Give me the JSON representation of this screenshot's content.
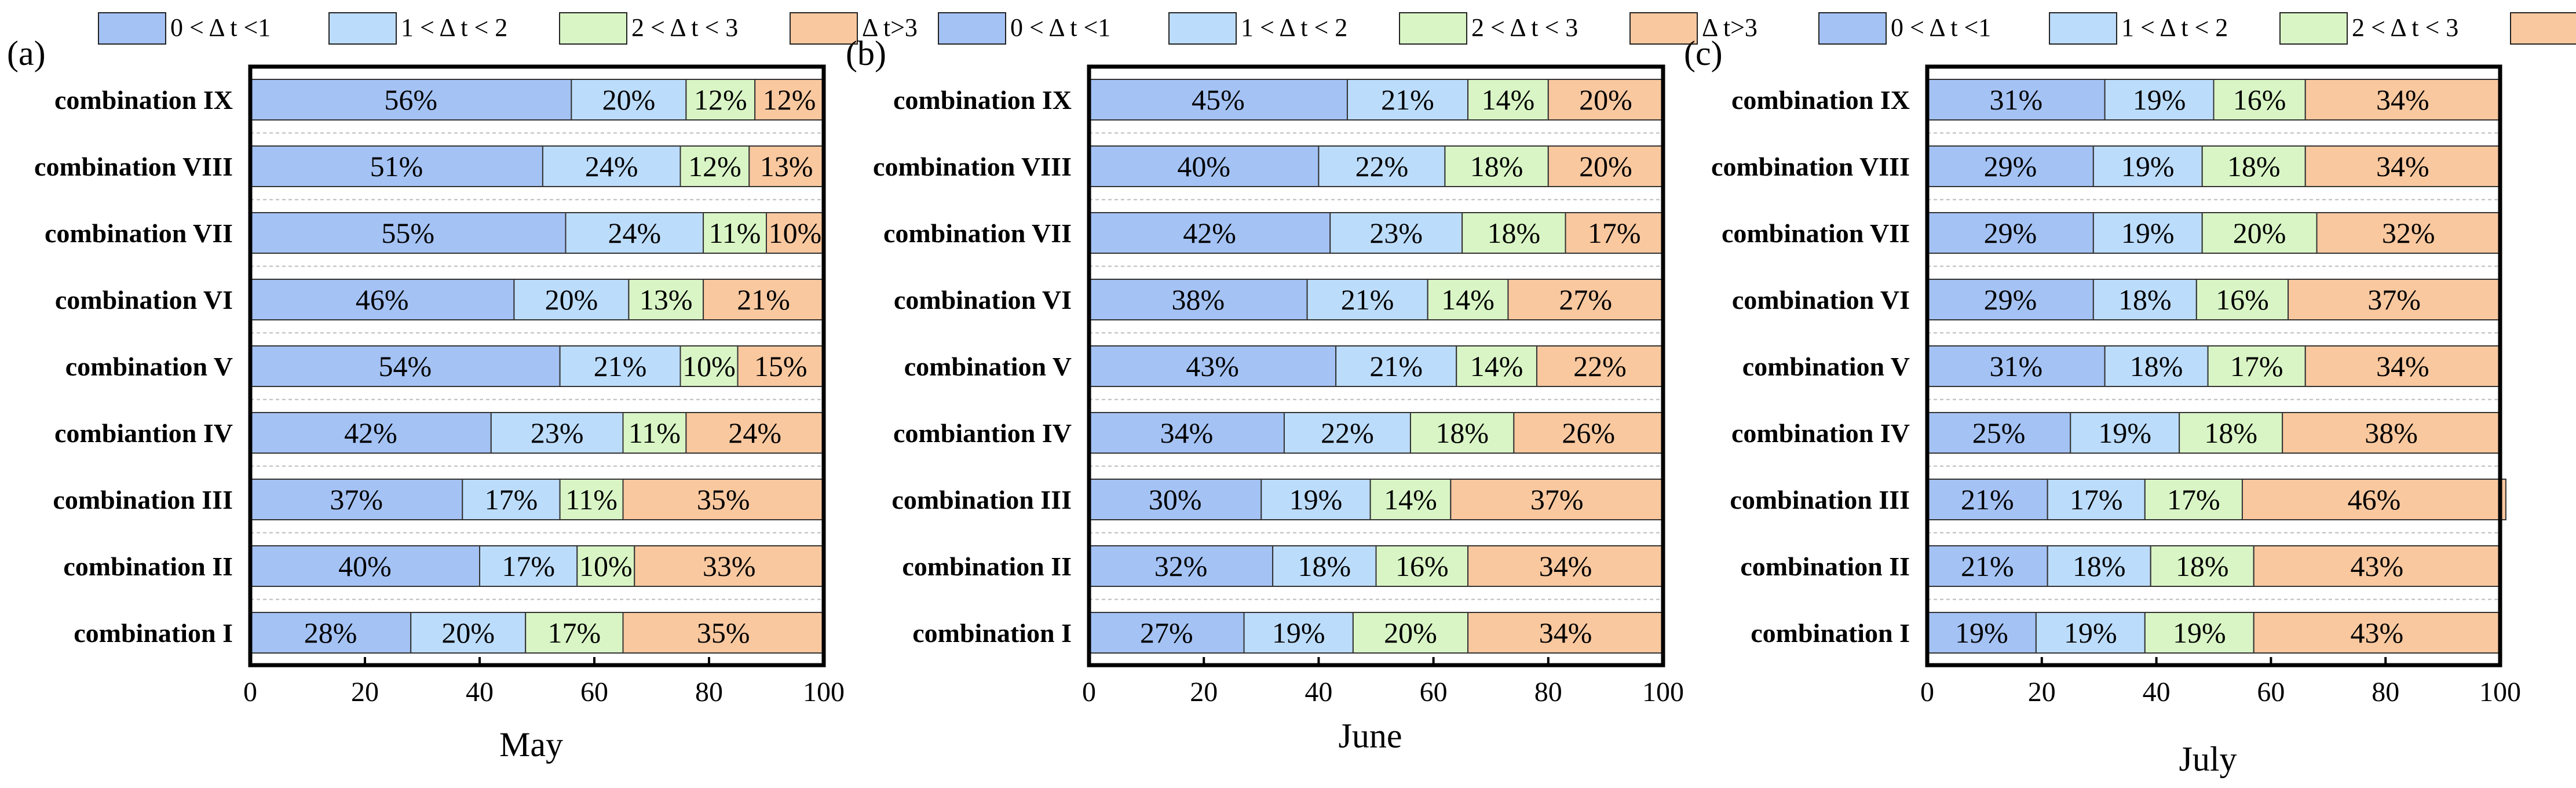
{
  "legend": [
    {
      "label": "0 < Δ t <1",
      "color": "#a4c2f4"
    },
    {
      "label": "1 < Δ t < 2",
      "color": "#bcdcfc"
    },
    {
      "label": "2 < Δ t < 3",
      "color": "#d9f5c5"
    },
    {
      "label": "Δ t>3",
      "color": "#f9c89f"
    }
  ],
  "chart_data": [
    {
      "type": "bar",
      "orientation": "horizontal",
      "stacked": true,
      "panel": "(a)",
      "xlabel": "May",
      "xlim": [
        0,
        100
      ],
      "xticks": [
        0,
        20,
        40,
        60,
        80,
        100
      ],
      "categories": [
        "combination IX",
        "combination VIII",
        "combination VII",
        "combination VI",
        "combination V",
        "combiantion IV",
        "combination III",
        "combination II",
        "combination I"
      ],
      "series": [
        {
          "name": "0 < Δ t <1",
          "values": [
            56,
            51,
            55,
            46,
            54,
            42,
            37,
            40,
            28
          ]
        },
        {
          "name": "1 < Δ t < 2",
          "values": [
            20,
            24,
            24,
            20,
            21,
            23,
            17,
            17,
            20
          ]
        },
        {
          "name": "2 < Δ t < 3",
          "values": [
            12,
            12,
            11,
            13,
            10,
            11,
            11,
            10,
            17
          ]
        },
        {
          "name": "Δ t>3",
          "values": [
            12,
            13,
            10,
            21,
            15,
            24,
            35,
            33,
            35
          ]
        }
      ]
    },
    {
      "type": "bar",
      "orientation": "horizontal",
      "stacked": true,
      "panel": "(b)",
      "xlabel": "June",
      "xlim": [
        0,
        100
      ],
      "xticks": [
        0,
        20,
        40,
        60,
        80,
        100
      ],
      "categories": [
        "combination IX",
        "combination VIII",
        "combination VII",
        "combination VI",
        "combination V",
        "combiantion IV",
        "combination III",
        "combination II",
        "combination I"
      ],
      "series": [
        {
          "name": "0 < Δ t <1",
          "values": [
            45,
            40,
            42,
            38,
            43,
            34,
            30,
            32,
            27
          ]
        },
        {
          "name": "1 < Δ t < 2",
          "values": [
            21,
            22,
            23,
            21,
            21,
            22,
            19,
            18,
            19
          ]
        },
        {
          "name": "2 < Δ t < 3",
          "values": [
            14,
            18,
            18,
            14,
            14,
            18,
            14,
            16,
            20
          ]
        },
        {
          "name": "Δ t>3",
          "values": [
            20,
            20,
            17,
            27,
            22,
            26,
            37,
            34,
            34
          ]
        }
      ]
    },
    {
      "type": "bar",
      "orientation": "horizontal",
      "stacked": true,
      "panel": "(c)",
      "xlabel": "July",
      "xlim": [
        0,
        100
      ],
      "xticks": [
        0,
        20,
        40,
        60,
        80,
        100
      ],
      "categories": [
        "combination IX",
        "combination VIII",
        "combination VII",
        "combination VI",
        "combination V",
        "combination IV",
        "combination III",
        "combination II",
        "combination I"
      ],
      "series": [
        {
          "name": "0 < Δ t <1",
          "values": [
            31,
            29,
            29,
            29,
            31,
            25,
            21,
            21,
            19
          ]
        },
        {
          "name": "1 < Δ t < 2",
          "values": [
            19,
            19,
            19,
            18,
            18,
            19,
            17,
            18,
            19
          ]
        },
        {
          "name": "2 < Δ t < 3",
          "values": [
            16,
            18,
            20,
            16,
            17,
            18,
            17,
            18,
            19
          ]
        },
        {
          "name": "Δ t>3",
          "values": [
            34,
            34,
            32,
            37,
            34,
            38,
            46,
            43,
            43
          ]
        }
      ]
    }
  ]
}
